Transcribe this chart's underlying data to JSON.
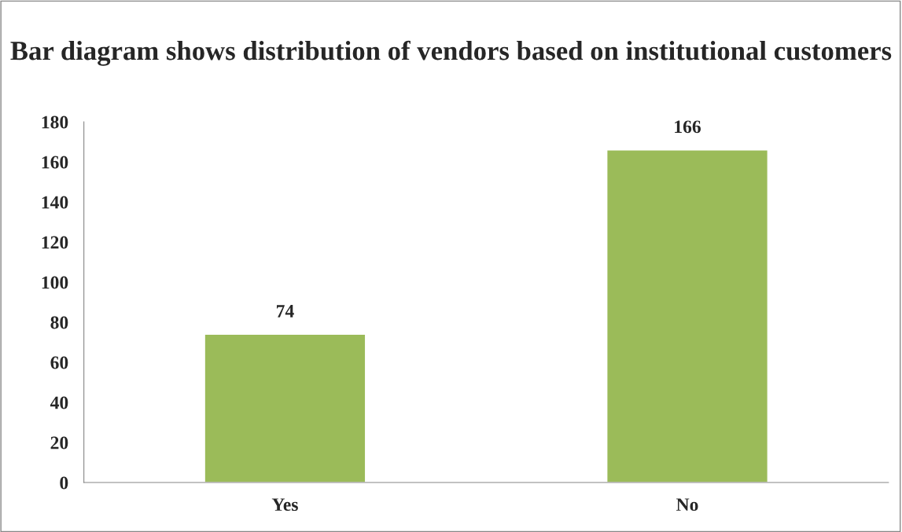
{
  "chart_data": {
    "type": "bar",
    "title": "Bar diagram shows distribution of vendors based on institutional customers",
    "categories": [
      "Yes",
      "No"
    ],
    "values": [
      74,
      166
    ],
    "color": "#9bbb59",
    "ylim": [
      0,
      180
    ],
    "yticks": [
      0,
      20,
      40,
      60,
      80,
      100,
      120,
      140,
      160,
      180
    ],
    "data_labels": true,
    "grid": false,
    "legend": false
  }
}
